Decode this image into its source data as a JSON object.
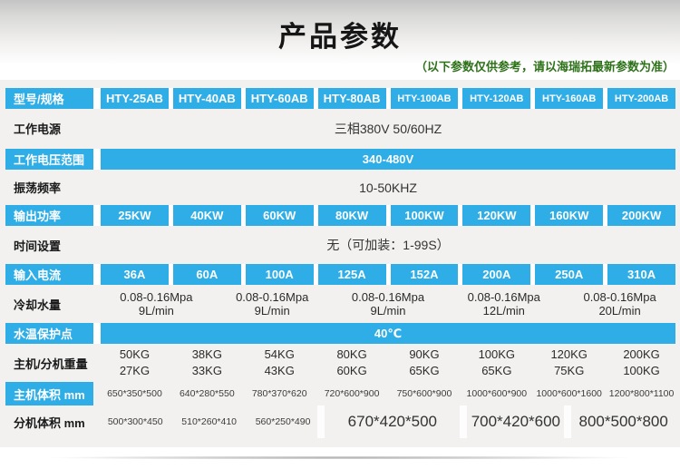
{
  "colors": {
    "accent_blue": "#2eade6",
    "disclaimer_green": "#2d7118"
  },
  "header": {
    "title": "产品参数",
    "disclaimer": "（以下参数仅供参考，请以海瑞拓最新参数为准）"
  },
  "rows": {
    "models": {
      "label": "型号/规格",
      "values": [
        "HTY-25AB",
        "HTY-40AB",
        "HTY-60AB",
        "HTY-80AB",
        "HTY-100AB",
        "HTY-120AB",
        "HTY-160AB",
        "HTY-200AB"
      ]
    },
    "power": {
      "label": "工作电源",
      "value": "三相380V 50/60HZ"
    },
    "voltage": {
      "label": "工作电压范围",
      "value": "340-480V"
    },
    "freq": {
      "label": "振荡频率",
      "value": "10-50KHZ"
    },
    "output": {
      "label": "输出功率",
      "values": [
        "25KW",
        "40KW",
        "60KW",
        "80KW",
        "100KW",
        "120KW",
        "160KW",
        "200KW"
      ]
    },
    "time": {
      "label": "时间设置",
      "value": "无（可加装：1-99S）"
    },
    "current": {
      "label": "输入电流",
      "values": [
        "36A",
        "60A",
        "100A",
        "125A",
        "152A",
        "200A",
        "250A",
        "310A"
      ]
    },
    "cooling": {
      "label": "冷却水量",
      "values": [
        {
          "p": "0.08-0.16Mpa",
          "f": "9L/min"
        },
        {
          "p": "0.08-0.16Mpa",
          "f": "9L/min"
        },
        {
          "p": "0.08-0.16Mpa",
          "f": "9L/min"
        },
        {
          "p": "0.08-0.16Mpa",
          "f": "12L/min"
        },
        {
          "p": "0.08-0.16Mpa",
          "f": "20L/min"
        }
      ]
    },
    "temp": {
      "label": "水温保护点",
      "value": "40℃"
    },
    "weight": {
      "label": "主机/分机重量",
      "values": [
        {
          "main": "50KG",
          "sub": "27KG"
        },
        {
          "main": "38KG",
          "sub": "33KG"
        },
        {
          "main": "54KG",
          "sub": "43KG"
        },
        {
          "main": "80KG",
          "sub": "60KG"
        },
        {
          "main": "90KG",
          "sub": "65KG"
        },
        {
          "main": "100KG",
          "sub": "65KG"
        },
        {
          "main": "120KG",
          "sub": "75KG"
        },
        {
          "main": "200KG",
          "sub": "100KG"
        }
      ]
    },
    "host_vol": {
      "label": "主机体积 mm",
      "values": [
        "650*350*500",
        "640*280*550",
        "780*370*620",
        "720*600*900",
        "750*600*900",
        "1000*600*900",
        "1000*600*1600",
        "1200*800*1100"
      ]
    },
    "sub_vol": {
      "label": "分机体积 mm",
      "small": [
        "500*300*450",
        "510*260*410",
        "560*250*490"
      ],
      "large": [
        "670*420*500",
        "700*420*600",
        "800*500*800"
      ]
    }
  }
}
